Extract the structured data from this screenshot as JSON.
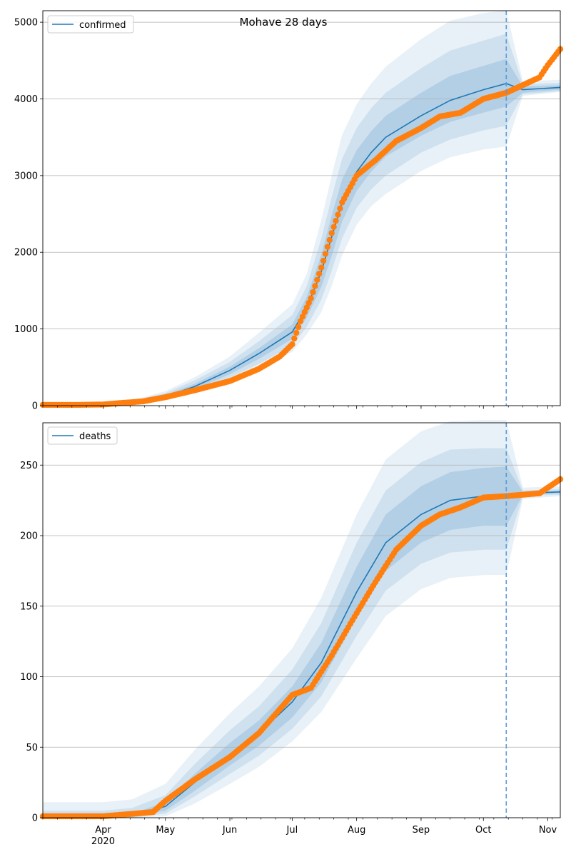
{
  "figure": {
    "title": "Mohave 28 days"
  },
  "colors": {
    "model": "#1f77b4",
    "observed": "#ff7f0e",
    "band": "#1f77b4",
    "grid": "#b0b0b0",
    "forecast_line": "#5a9bd8"
  },
  "chart_data": [
    {
      "type": "line",
      "name": "confirmed-panel",
      "title": "Mohave 28 days",
      "xlabel": "",
      "ylabel": "",
      "x_range": [
        "2020-03-03",
        "2020-11-07"
      ],
      "ylim": [
        0,
        5150
      ],
      "yticks": [
        0,
        1000,
        2000,
        3000,
        4000,
        5000
      ],
      "grid": "horizontal",
      "legend": {
        "placement": "top-left",
        "entries": [
          "confirmed"
        ]
      },
      "forecast_start": "2020-10-12",
      "model": {
        "name": "confirmed",
        "x": [
          "2020-03-03",
          "2020-03-20",
          "2020-04-01",
          "2020-04-15",
          "2020-05-01",
          "2020-05-15",
          "2020-06-01",
          "2020-06-15",
          "2020-07-01",
          "2020-07-08",
          "2020-07-15",
          "2020-07-20",
          "2020-07-25",
          "2020-08-01",
          "2020-08-08",
          "2020-08-15",
          "2020-09-01",
          "2020-09-15",
          "2020-10-01",
          "2020-10-12",
          "2020-10-20",
          "2020-11-07"
        ],
        "y": [
          10,
          10,
          15,
          40,
          120,
          250,
          460,
          680,
          960,
          1280,
          1750,
          2200,
          2650,
          3050,
          3300,
          3500,
          3780,
          3980,
          4120,
          4200,
          4120,
          4150
        ],
        "lo50": [
          10,
          10,
          13,
          32,
          100,
          215,
          410,
          610,
          870,
          1150,
          1550,
          1950,
          2400,
          2800,
          3050,
          3250,
          3520,
          3700,
          3820,
          3900,
          4080,
          4120
        ],
        "hi50": [
          10,
          10,
          17,
          48,
          140,
          285,
          510,
          750,
          1060,
          1420,
          1970,
          2480,
          2950,
          3330,
          3580,
          3780,
          4080,
          4300,
          4430,
          4520,
          4160,
          4180
        ],
        "lo80": [
          10,
          10,
          11,
          25,
          85,
          185,
          365,
          545,
          780,
          1030,
          1380,
          1760,
          2180,
          2580,
          2820,
          3000,
          3300,
          3470,
          3590,
          3650,
          4060,
          4100
        ],
        "hi80": [
          10,
          10,
          20,
          58,
          165,
          330,
          570,
          840,
          1180,
          1560,
          2180,
          2720,
          3220,
          3620,
          3880,
          4080,
          4400,
          4630,
          4760,
          4850,
          4190,
          4210
        ],
        "lo95": [
          10,
          10,
          9,
          18,
          70,
          160,
          320,
          480,
          700,
          930,
          1220,
          1560,
          1960,
          2360,
          2600,
          2760,
          3060,
          3240,
          3340,
          3380,
          4040,
          4090
        ],
        "hi95": [
          10,
          10,
          23,
          70,
          190,
          370,
          640,
          950,
          1320,
          1720,
          2420,
          3000,
          3530,
          3930,
          4200,
          4420,
          4780,
          5020,
          5120,
          5150,
          4230,
          4250
        ]
      },
      "observed": {
        "x": [
          "2020-03-03",
          "2020-03-20",
          "2020-04-01",
          "2020-04-10",
          "2020-04-20",
          "2020-05-01",
          "2020-05-15",
          "2020-06-01",
          "2020-06-15",
          "2020-06-25",
          "2020-07-01",
          "2020-07-05",
          "2020-07-10",
          "2020-07-15",
          "2020-07-20",
          "2020-07-25",
          "2020-08-01",
          "2020-08-10",
          "2020-08-20",
          "2020-09-01",
          "2020-09-10",
          "2020-09-20",
          "2020-10-01",
          "2020-10-12",
          "2020-10-20",
          "2020-10-28",
          "2020-11-01",
          "2020-11-07"
        ],
        "y": [
          10,
          10,
          15,
          35,
          55,
          110,
          200,
          320,
          480,
          640,
          800,
          1100,
          1400,
          1800,
          2250,
          2650,
          3000,
          3200,
          3450,
          3620,
          3770,
          3820,
          4000,
          4080,
          4180,
          4280,
          4440,
          4650
        ]
      }
    },
    {
      "type": "line",
      "name": "deaths-panel",
      "title": "",
      "xlabel": "",
      "ylabel": "",
      "x_range": [
        "2020-03-03",
        "2020-11-07"
      ],
      "ylim": [
        0,
        280
      ],
      "yticks": [
        0,
        50,
        100,
        150,
        200,
        250
      ],
      "xticks": [
        {
          "date": "2020-04-01",
          "label": "Apr",
          "sublabel": "2020"
        },
        {
          "date": "2020-05-01",
          "label": "May"
        },
        {
          "date": "2020-06-01",
          "label": "Jun"
        },
        {
          "date": "2020-07-01",
          "label": "Jul"
        },
        {
          "date": "2020-08-01",
          "label": "Aug"
        },
        {
          "date": "2020-09-01",
          "label": "Sep"
        },
        {
          "date": "2020-10-01",
          "label": "Oct"
        },
        {
          "date": "2020-11-01",
          "label": "Nov"
        }
      ],
      "grid": "horizontal",
      "legend": {
        "placement": "top-left",
        "entries": [
          "deaths"
        ]
      },
      "forecast_start": "2020-10-12",
      "model": {
        "name": "deaths",
        "x": [
          "2020-03-03",
          "2020-04-01",
          "2020-04-15",
          "2020-05-01",
          "2020-05-15",
          "2020-06-01",
          "2020-06-15",
          "2020-07-01",
          "2020-07-15",
          "2020-08-01",
          "2020-08-15",
          "2020-09-01",
          "2020-09-15",
          "2020-10-01",
          "2020-10-12",
          "2020-10-20",
          "2020-11-07"
        ],
        "y": [
          1,
          1,
          2,
          8,
          25,
          45,
          60,
          82,
          110,
          160,
          195,
          215,
          225,
          228,
          228,
          230,
          231
        ],
        "lo50": [
          1,
          1,
          1,
          5,
          19,
          37,
          51,
          71,
          96,
          142,
          175,
          195,
          204,
          207,
          207,
          229,
          230
        ],
        "hi50": [
          2,
          2,
          3,
          11,
          31,
          53,
          69,
          93,
          124,
          178,
          215,
          235,
          245,
          248,
          249,
          231,
          232
        ],
        "lo80": [
          0,
          0,
          0,
          3,
          15,
          31,
          44,
          63,
          86,
          129,
          161,
          180,
          188,
          190,
          190,
          228,
          229
        ],
        "hi80": [
          5,
          5,
          7,
          16,
          38,
          62,
          79,
          105,
          138,
          195,
          232,
          252,
          261,
          262,
          262,
          232,
          233
        ],
        "lo95": [
          0,
          0,
          0,
          1,
          10,
          24,
          36,
          54,
          75,
          113,
          143,
          162,
          170,
          172,
          172,
          226,
          228
        ],
        "hi95": [
          11,
          11,
          13,
          24,
          48,
          74,
          93,
          120,
          156,
          215,
          254,
          274,
          281,
          282,
          282,
          234,
          235
        ]
      },
      "observed": {
        "x": [
          "2020-03-03",
          "2020-04-01",
          "2020-04-25",
          "2020-05-01",
          "2020-05-15",
          "2020-06-01",
          "2020-06-15",
          "2020-07-01",
          "2020-07-10",
          "2020-07-20",
          "2020-08-01",
          "2020-08-10",
          "2020-08-20",
          "2020-09-01",
          "2020-09-10",
          "2020-09-20",
          "2020-10-01",
          "2020-10-12",
          "2020-10-20",
          "2020-10-28",
          "2020-11-01",
          "2020-11-07"
        ],
        "y": [
          1,
          1,
          4,
          12,
          27,
          43,
          60,
          87,
          92,
          115,
          145,
          167,
          190,
          207,
          215,
          220,
          227,
          228,
          229,
          230,
          234,
          240
        ]
      }
    }
  ]
}
